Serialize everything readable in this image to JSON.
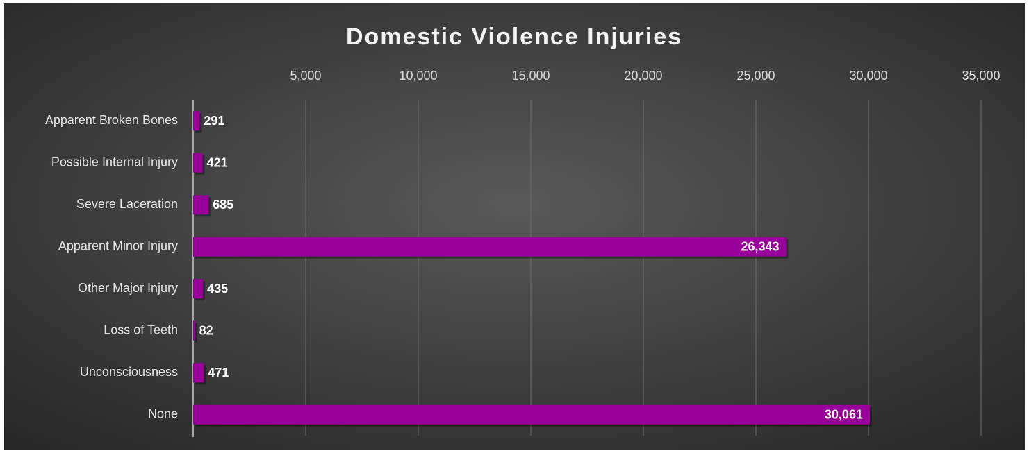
{
  "chart_data": {
    "type": "bar",
    "orientation": "horizontal",
    "title": "Domestic Violence Injuries",
    "categories": [
      "Apparent Broken Bones",
      "Possible Internal Injury",
      "Severe Laceration",
      "Apparent Minor Injury",
      "Other Major Injury",
      "Loss of Teeth",
      "Unconsciousness",
      "None"
    ],
    "values": [
      291,
      421,
      685,
      26343,
      435,
      82,
      471,
      30061
    ],
    "value_labels": [
      "291",
      "421",
      "685",
      "26,343",
      "435",
      "82",
      "471",
      "30,061"
    ],
    "color": "#990099",
    "xlim": [
      0,
      35000
    ],
    "xticks": [
      {
        "value": 5000,
        "label": "5,000"
      },
      {
        "value": 10000,
        "label": "10,000"
      },
      {
        "value": 15000,
        "label": "15,000"
      },
      {
        "value": 20000,
        "label": "20,000"
      },
      {
        "value": 25000,
        "label": "25,000"
      },
      {
        "value": 30000,
        "label": "30,000"
      },
      {
        "value": 35000,
        "label": "35,000"
      }
    ],
    "grid": true
  }
}
